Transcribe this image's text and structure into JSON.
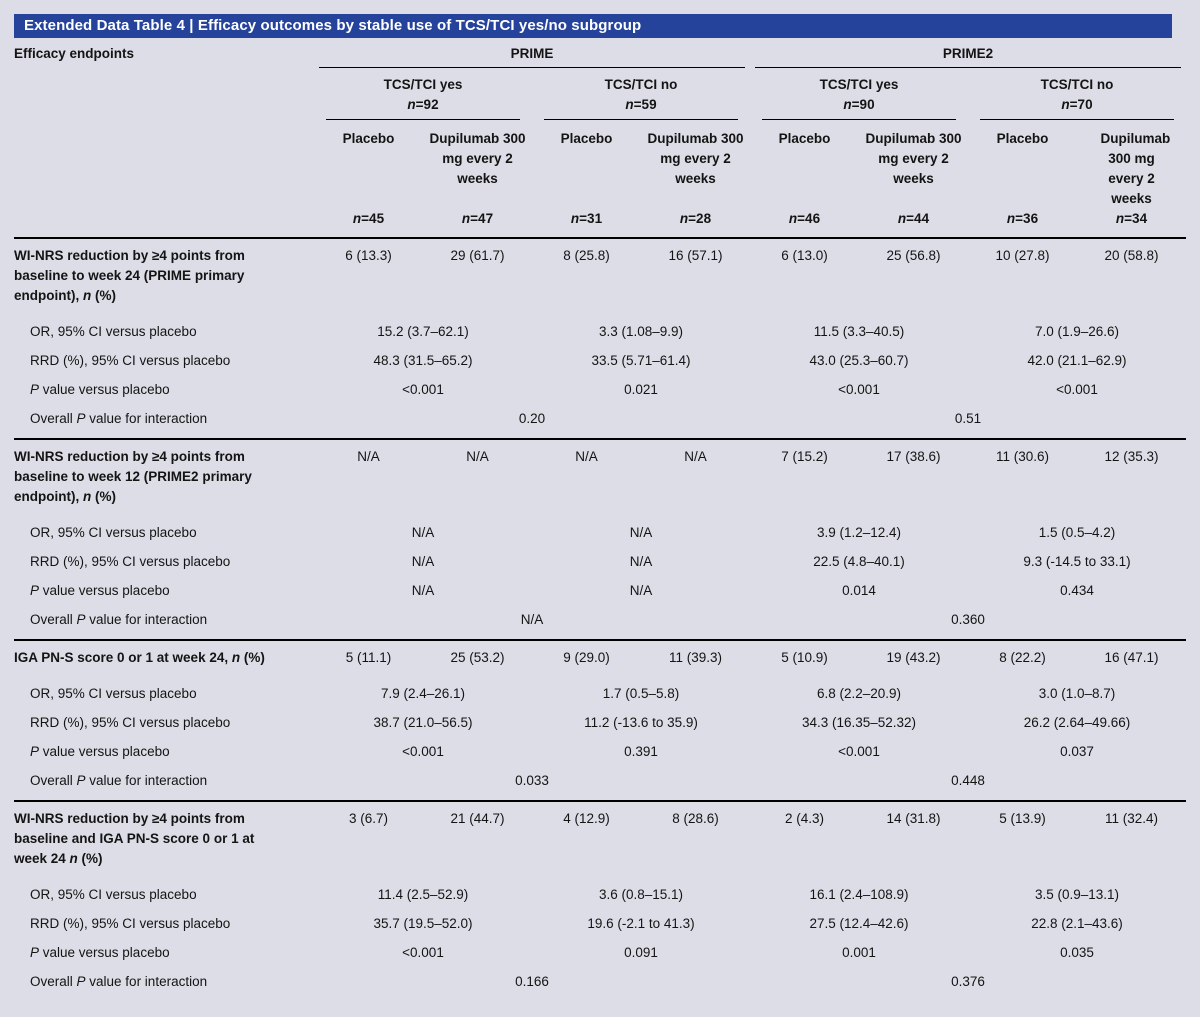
{
  "title": "Extended Data Table 4 | Efficacy outcomes by stable use of TCS/TCI yes/no subgroup",
  "header": {
    "endpoint_col_label": "Efficacy endpoints",
    "studies": [
      {
        "name": "PRIME",
        "groups": [
          {
            "name": "TCS/TCI yes",
            "n": [
              {
                "t": "n",
                "i": true
              },
              {
                "t": "=92"
              }
            ],
            "arms": [
              {
                "label": "Placebo",
                "n": [
                  {
                    "t": "n",
                    "i": true
                  },
                  {
                    "t": "=45"
                  }
                ]
              },
              {
                "label": "Dupilumab 300 mg every 2 weeks",
                "n": [
                  {
                    "t": "n",
                    "i": true
                  },
                  {
                    "t": "=47"
                  }
                ]
              }
            ]
          },
          {
            "name": "TCS/TCI no",
            "n": [
              {
                "t": "n",
                "i": true
              },
              {
                "t": "=59"
              }
            ],
            "arms": [
              {
                "label": "Placebo",
                "n": [
                  {
                    "t": "n",
                    "i": true
                  },
                  {
                    "t": "=31"
                  }
                ]
              },
              {
                "label": "Dupilumab 300 mg every 2 weeks",
                "n": [
                  {
                    "t": "n",
                    "i": true
                  },
                  {
                    "t": "=28"
                  }
                ]
              }
            ]
          }
        ]
      },
      {
        "name": "PRIME2",
        "groups": [
          {
            "name": "TCS/TCI yes",
            "n": [
              {
                "t": "n",
                "i": true
              },
              {
                "t": "=90"
              }
            ],
            "arms": [
              {
                "label": "Placebo",
                "n": [
                  {
                    "t": "n",
                    "i": true
                  },
                  {
                    "t": "=46"
                  }
                ]
              },
              {
                "label": "Dupilumab 300 mg every 2 weeks",
                "n": [
                  {
                    "t": "n",
                    "i": true
                  },
                  {
                    "t": "=44"
                  }
                ]
              }
            ]
          },
          {
            "name": "TCS/TCI no",
            "n": [
              {
                "t": "n",
                "i": true
              },
              {
                "t": "=70"
              }
            ],
            "arms": [
              {
                "label": "Placebo",
                "n": [
                  {
                    "t": "n",
                    "i": true
                  },
                  {
                    "t": "=36"
                  }
                ]
              },
              {
                "label": "Dupilumab 300 mg every 2 weeks",
                "n": [
                  {
                    "t": "n",
                    "i": true
                  },
                  {
                    "t": "=34"
                  }
                ]
              }
            ]
          }
        ]
      }
    ]
  },
  "row_labels": {
    "or": "OR, 95% CI versus placebo",
    "rrd": "RRD (%), 95% CI versus placebo",
    "p": [
      {
        "t": "P",
        "i": true
      },
      {
        "t": " value versus placebo"
      }
    ],
    "overall": [
      {
        "t": "Overall "
      },
      {
        "t": "P",
        "i": true
      },
      {
        "t": " value for interaction"
      }
    ]
  },
  "blocks": [
    {
      "endpoint": [
        {
          "t": "WI-NRS reduction by ≥4 points from baseline to week 24 (PRIME primary endpoint), "
        },
        {
          "t": "n",
          "i": true
        },
        {
          "t": " (%)"
        }
      ],
      "values": [
        "6 (13.3)",
        "29 (61.7)",
        "8 (25.8)",
        "16 (57.1)",
        "6 (13.0)",
        "25 (56.8)",
        "10 (27.8)",
        "20 (58.8)"
      ],
      "or": [
        "15.2 (3.7–62.1)",
        "3.3 (1.08–9.9)",
        "11.5 (3.3–40.5)",
        "7.0 (1.9–26.6)"
      ],
      "rrd": [
        "48.3 (31.5–65.2)",
        "33.5 (5.71–61.4)",
        "43.0 (25.3–60.7)",
        "42.0 (21.1–62.9)"
      ],
      "p": [
        "<0.001",
        "0.021",
        "<0.001",
        "<0.001"
      ],
      "overall": [
        "0.20",
        "0.51"
      ]
    },
    {
      "endpoint": [
        {
          "t": "WI-NRS reduction by ≥4 points from baseline to week 12 (PRIME2 primary endpoint), "
        },
        {
          "t": "n",
          "i": true
        },
        {
          "t": " (%)"
        }
      ],
      "values": [
        "N/A",
        "N/A",
        "N/A",
        "N/A",
        "7 (15.2)",
        "17 (38.6)",
        "11 (30.6)",
        "12 (35.3)"
      ],
      "or": [
        "N/A",
        "N/A",
        "3.9 (1.2–12.4)",
        "1.5 (0.5–4.2)"
      ],
      "rrd": [
        "N/A",
        "N/A",
        "22.5 (4.8–40.1)",
        "9.3 (-14.5 to 33.1)"
      ],
      "p": [
        "N/A",
        "N/A",
        "0.014",
        "0.434"
      ],
      "overall": [
        "N/A",
        "0.360"
      ]
    },
    {
      "endpoint": [
        {
          "t": "IGA PN-S score 0 or 1 at week 24, "
        },
        {
          "t": "n",
          "i": true
        },
        {
          "t": " (%)"
        }
      ],
      "values": [
        "5 (11.1)",
        "25 (53.2)",
        "9 (29.0)",
        "11 (39.3)",
        "5 (10.9)",
        "19 (43.2)",
        "8 (22.2)",
        "16 (47.1)"
      ],
      "or": [
        "7.9 (2.4–26.1)",
        "1.7 (0.5–5.8)",
        "6.8 (2.2–20.9)",
        "3.0 (1.0–8.7)"
      ],
      "rrd": [
        "38.7 (21.0–56.5)",
        "11.2 (-13.6 to 35.9)",
        "34.3 (16.35–52.32)",
        "26.2 (2.64–49.66)"
      ],
      "p": [
        "<0.001",
        "0.391",
        "<0.001",
        "0.037"
      ],
      "overall": [
        "0.033",
        "0.448"
      ]
    },
    {
      "endpoint": [
        {
          "t": "WI-NRS reduction by ≥4 points from baseline and IGA PN-S score 0 or 1 at week 24 "
        },
        {
          "t": "n",
          "i": true
        },
        {
          "t": " (%)"
        }
      ],
      "values": [
        "3 (6.7)",
        "21 (44.7)",
        "4 (12.9)",
        "8 (28.6)",
        "2 (4.3)",
        "14 (31.8)",
        "5 (13.9)",
        "11 (32.4)"
      ],
      "or": [
        "11.4 (2.5–52.9)",
        "3.6 (0.8–15.1)",
        "16.1 (2.4–108.9)",
        "3.5 (0.9–13.1)"
      ],
      "rrd": [
        "35.7 (19.5–52.0)",
        "19.6 (-2.1 to 41.3)",
        "27.5 (12.4–42.6)",
        "22.8 (2.1–43.6)"
      ],
      "p": [
        "<0.001",
        "0.091",
        "0.001",
        "0.035"
      ],
      "overall": [
        "0.166",
        "0.376"
      ]
    }
  ],
  "colors": {
    "title_bar": "#26439b",
    "background": "#dcdde6",
    "rule": "#000000"
  }
}
